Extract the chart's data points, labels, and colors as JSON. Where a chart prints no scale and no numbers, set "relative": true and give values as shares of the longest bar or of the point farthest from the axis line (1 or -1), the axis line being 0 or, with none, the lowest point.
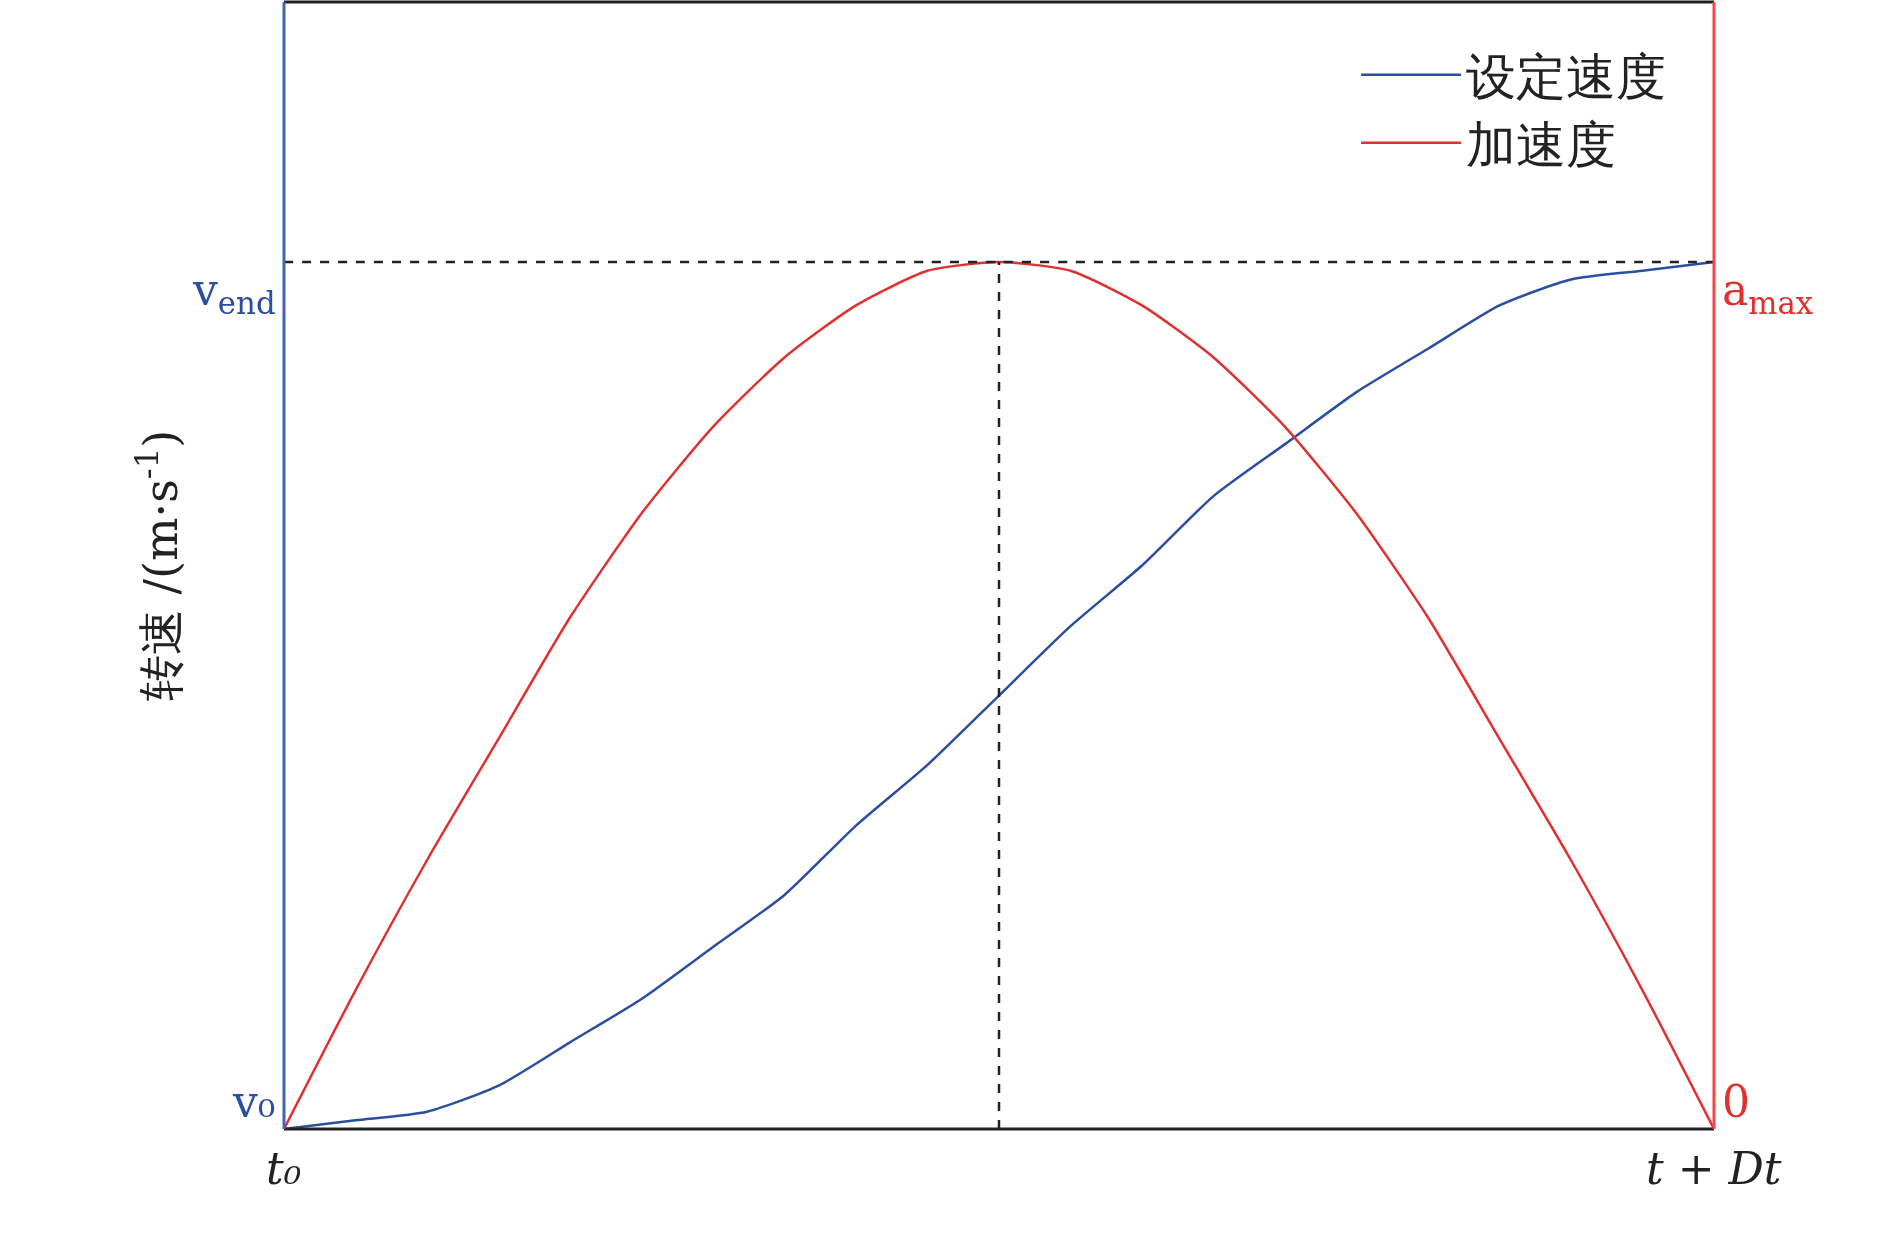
{
  "chart_data": {
    "type": "line",
    "ylabel": "转速 /(m·s$^{-1}$)",
    "relative": true,
    "categories": [
      null,
      null,
      null,
      null,
      null,
      null,
      null,
      null,
      null,
      null,
      null,
      null,
      null,
      null,
      null,
      null,
      null,
      null,
      null,
      null,
      null
    ],
    "series": [
      {
        "name": "设定速度",
        "color": "#2a4ea0",
        "values": [
          0,
          0.01,
          0.02,
          0.05,
          0.1,
          0.15,
          0.21,
          0.27,
          0.35,
          0.42,
          0.5,
          0.58,
          0.65,
          0.73,
          0.79,
          0.85,
          0.9,
          0.95,
          0.98,
          0.99,
          1
        ]
      },
      {
        "name": "加速度",
        "color": "#e03030",
        "values": [
          0,
          0.16,
          0.31,
          0.45,
          0.59,
          0.71,
          0.81,
          0.89,
          0.95,
          0.99,
          1,
          0.99,
          0.95,
          0.89,
          0.81,
          0.71,
          0.59,
          0.45,
          0.31,
          0.16,
          0
        ]
      },
      {
        "color": "#222222",
        "line_style": "dashed",
        "values": [
          1,
          1,
          1,
          1,
          1,
          1,
          1,
          1,
          1,
          1,
          1,
          1,
          1,
          1,
          1,
          1,
          1,
          1,
          1,
          1,
          1
        ]
      }
    ],
    "annotations": [
      "t₀",
      "t + Dt",
      "v₀",
      "v$_{end}$",
      "0",
      "a$_{max}$"
    ],
    "legend": "top right",
    "marker": "none",
    "line_style": "solid"
  }
}
